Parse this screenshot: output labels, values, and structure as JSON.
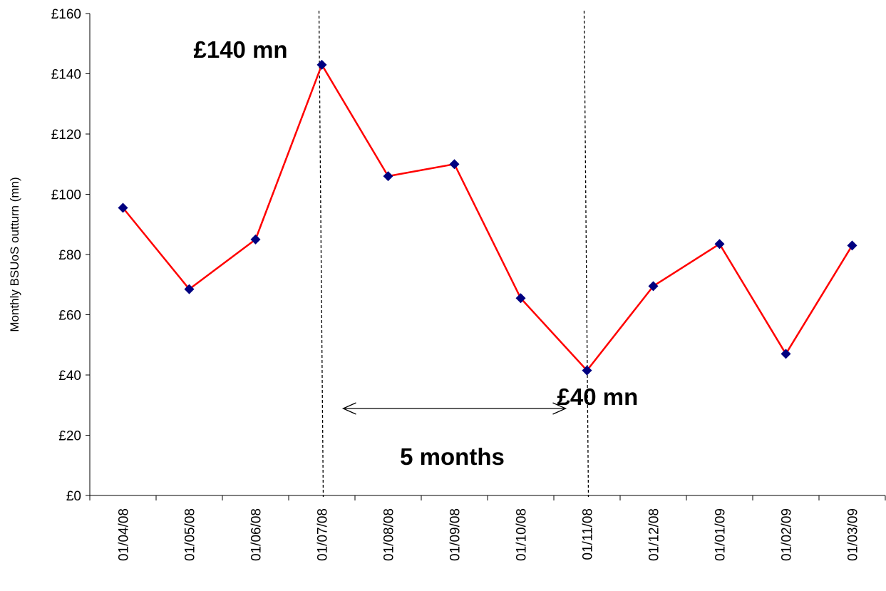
{
  "chart_data": {
    "type": "line",
    "title": "",
    "xlabel": "",
    "ylabel": "Monthly BSUoS outturn (mn)",
    "categories": [
      "01/04/08",
      "01/05/08",
      "01/06/08",
      "01/07/08",
      "01/08/08",
      "01/09/08",
      "01/10/08",
      "01/11/08",
      "01/12/08",
      "01/01/09",
      "01/02/09",
      "01/03/09"
    ],
    "series": [
      {
        "values": [
          95.5,
          68.5,
          85,
          143,
          106,
          110,
          65.5,
          41.5,
          69.5,
          83.5,
          47,
          83
        ]
      }
    ],
    "ylim": [
      0,
      160
    ],
    "yticks": [
      0,
      20,
      40,
      60,
      80,
      100,
      120,
      140,
      160
    ],
    "ytick_labels": [
      "£0",
      "£20",
      "£40",
      "£60",
      "£80",
      "£100",
      "£120",
      "£140",
      "£160"
    ],
    "grid": false,
    "legend": "none",
    "line_color": "#ff0000",
    "marker_color": "#000080",
    "annotations": {
      "peak_label": "£140 mn",
      "trough_label": "£40 mn",
      "span_label": "5 months",
      "vlines_at": [
        "01/07/08",
        "01/11/08"
      ]
    }
  }
}
